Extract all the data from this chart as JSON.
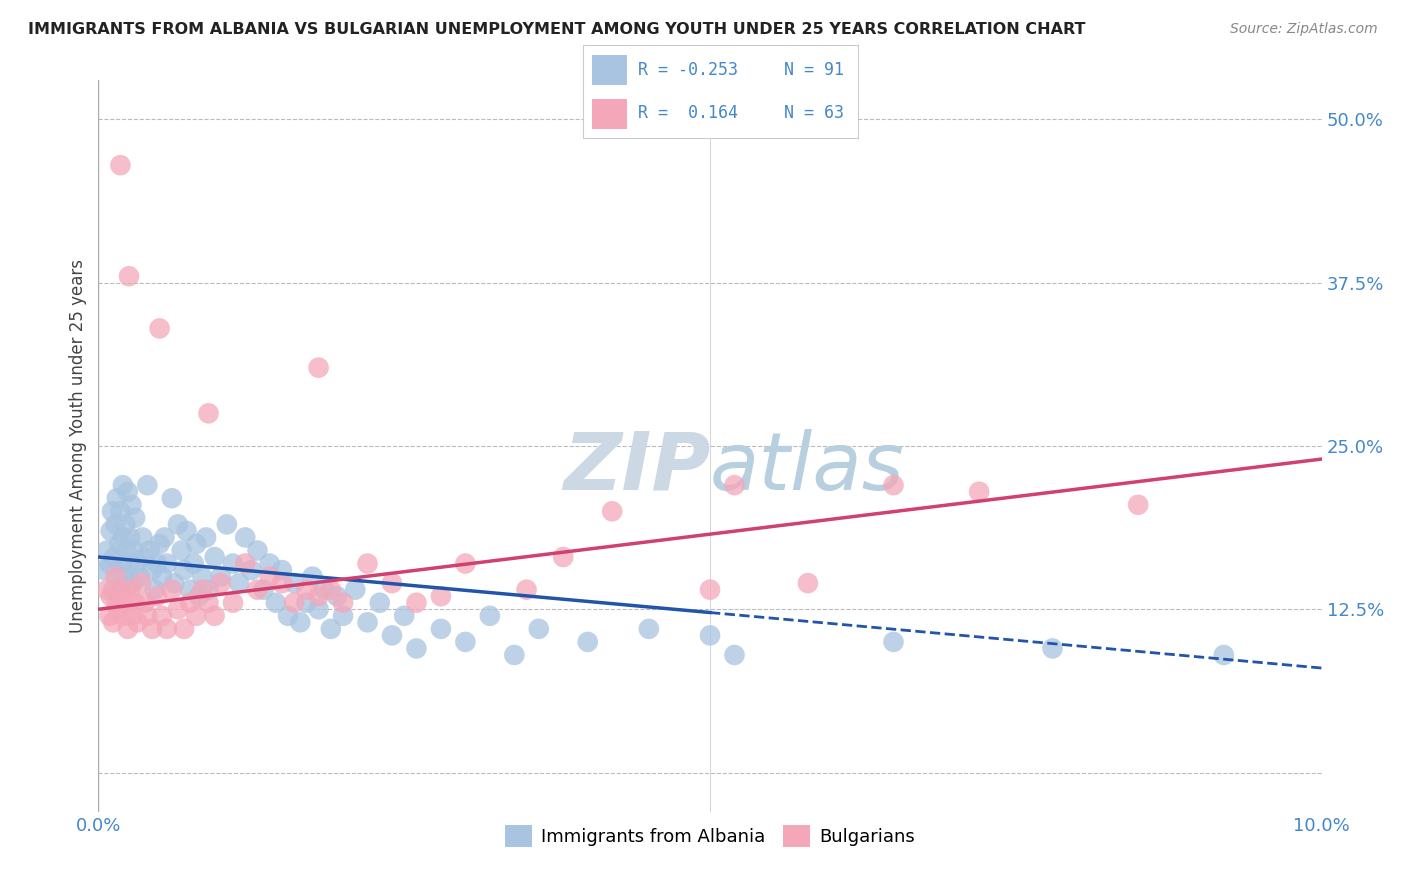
{
  "title": "IMMIGRANTS FROM ALBANIA VS BULGARIAN UNEMPLOYMENT AMONG YOUTH UNDER 25 YEARS CORRELATION CHART",
  "source": "Source: ZipAtlas.com",
  "ylabel": "Unemployment Among Youth under 25 years",
  "xlim": [
    0.0,
    10.0
  ],
  "ylim": [
    -3.0,
    53.0
  ],
  "yticks": [
    0.0,
    12.5,
    25.0,
    37.5,
    50.0
  ],
  "ytick_labels": [
    "",
    "12.5%",
    "25.0%",
    "37.5%",
    "50.0%"
  ],
  "blue_color": "#a8c4e0",
  "pink_color": "#f4a7b9",
  "blue_line_color": "#2255aa",
  "pink_line_color": "#d04070",
  "background_color": "#ffffff",
  "grid_color": "#bbbbbb",
  "title_color": "#222222",
  "axis_label_color": "#4488cc",
  "watermark_color": "#dde8f0",
  "blue_x": [
    0.05,
    0.07,
    0.09,
    0.1,
    0.11,
    0.12,
    0.13,
    0.14,
    0.15,
    0.16,
    0.17,
    0.18,
    0.19,
    0.2,
    0.2,
    0.21,
    0.22,
    0.23,
    0.24,
    0.25,
    0.26,
    0.27,
    0.28,
    0.29,
    0.3,
    0.32,
    0.34,
    0.36,
    0.38,
    0.4,
    0.42,
    0.44,
    0.46,
    0.48,
    0.5,
    0.52,
    0.54,
    0.56,
    0.6,
    0.62,
    0.65,
    0.68,
    0.7,
    0.72,
    0.75,
    0.78,
    0.8,
    0.82,
    0.85,
    0.88,
    0.9,
    0.95,
    1.0,
    1.05,
    1.1,
    1.15,
    1.2,
    1.25,
    1.3,
    1.35,
    1.4,
    1.45,
    1.5,
    1.55,
    1.6,
    1.65,
    1.7,
    1.75,
    1.8,
    1.85,
    1.9,
    1.95,
    2.0,
    2.1,
    2.2,
    2.3,
    2.4,
    2.5,
    2.6,
    2.8,
    3.0,
    3.2,
    3.4,
    3.6,
    4.0,
    4.5,
    5.0,
    5.2,
    6.5,
    7.8,
    9.2
  ],
  "blue_y": [
    15.5,
    17.0,
    16.0,
    18.5,
    20.0,
    14.0,
    16.5,
    19.0,
    21.0,
    15.0,
    17.5,
    20.0,
    16.0,
    22.0,
    18.0,
    15.0,
    19.0,
    17.0,
    21.5,
    16.0,
    18.0,
    20.5,
    14.5,
    17.0,
    19.5,
    16.0,
    15.0,
    18.0,
    16.5,
    22.0,
    17.0,
    15.5,
    14.0,
    16.0,
    17.5,
    15.0,
    18.0,
    16.0,
    21.0,
    14.5,
    19.0,
    17.0,
    15.5,
    18.5,
    14.0,
    16.0,
    17.5,
    13.5,
    15.0,
    18.0,
    14.0,
    16.5,
    15.0,
    19.0,
    16.0,
    14.5,
    18.0,
    15.5,
    17.0,
    14.0,
    16.0,
    13.0,
    15.5,
    12.0,
    14.5,
    11.5,
    13.0,
    15.0,
    12.5,
    14.0,
    11.0,
    13.5,
    12.0,
    14.0,
    11.5,
    13.0,
    10.5,
    12.0,
    9.5,
    11.0,
    10.0,
    12.0,
    9.0,
    11.0,
    10.0,
    11.0,
    10.5,
    9.0,
    10.0,
    9.5,
    9.0
  ],
  "pink_x": [
    0.07,
    0.09,
    0.1,
    0.12,
    0.14,
    0.15,
    0.16,
    0.18,
    0.2,
    0.22,
    0.24,
    0.26,
    0.28,
    0.3,
    0.32,
    0.35,
    0.38,
    0.4,
    0.44,
    0.48,
    0.52,
    0.56,
    0.6,
    0.65,
    0.7,
    0.75,
    0.8,
    0.85,
    0.9,
    0.95,
    1.0,
    1.1,
    1.2,
    1.3,
    1.4,
    1.5,
    1.6,
    1.7,
    1.8,
    1.9,
    2.0,
    2.2,
    2.4,
    2.6,
    2.8,
    3.0,
    3.5,
    4.2,
    5.0,
    5.8,
    6.5,
    7.2,
    8.5,
    0.18,
    0.25,
    0.5,
    0.9,
    1.8,
    3.8,
    5.2
  ],
  "pink_y": [
    14.0,
    12.0,
    13.5,
    11.5,
    15.0,
    13.0,
    12.5,
    14.0,
    12.0,
    13.5,
    11.0,
    14.0,
    12.0,
    13.0,
    11.5,
    14.5,
    13.0,
    12.0,
    11.0,
    13.5,
    12.0,
    11.0,
    14.0,
    12.5,
    11.0,
    13.0,
    12.0,
    14.0,
    13.0,
    12.0,
    14.5,
    13.0,
    16.0,
    14.0,
    15.0,
    14.5,
    13.0,
    14.0,
    13.5,
    14.0,
    13.0,
    16.0,
    14.5,
    13.0,
    13.5,
    16.0,
    14.0,
    20.0,
    14.0,
    14.5,
    22.0,
    21.5,
    20.5,
    46.5,
    38.0,
    34.0,
    27.5,
    31.0,
    16.5,
    22.0
  ]
}
